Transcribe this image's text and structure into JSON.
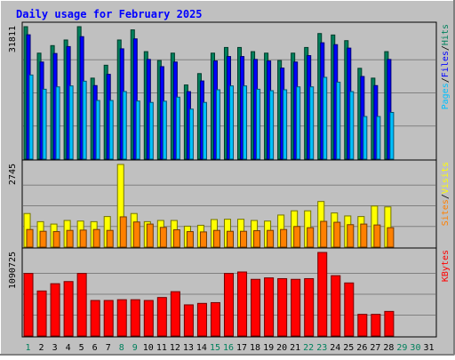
{
  "title": "Daily usage for February 2025",
  "colors": {
    "background": "#C0C0C0",
    "plot_background": "#C0C0C0",
    "title": "#0000FF",
    "hits": "#00805C",
    "files": "#0000FF",
    "pages": "#00C0FF",
    "visits": "#FFFF00",
    "sites": "#FF8000",
    "kbytes": "#FF0000",
    "weekday_label": "#000000",
    "weekend_label": "#00805C",
    "gridline": "#808080"
  },
  "chart_data": [
    {
      "type": "bar",
      "panel": "top",
      "max_label": "31811",
      "ylim": [
        0,
        31811
      ],
      "legend": [
        "Pages",
        "/",
        "Files",
        "/",
        "Hits"
      ],
      "legend_placement": "right",
      "categories": [
        "1",
        "2",
        "3",
        "4",
        "5",
        "6",
        "7",
        "8",
        "9",
        "10",
        "11",
        "12",
        "13",
        "14",
        "15",
        "16",
        "17",
        "18",
        "19",
        "20",
        "21",
        "22",
        "23",
        "24",
        "25",
        "26",
        "27",
        "28",
        "29",
        "30",
        "31"
      ],
      "weekend_days": [
        "1",
        "8",
        "9",
        "15",
        "16",
        "22",
        "23",
        "29",
        "30"
      ],
      "series": [
        {
          "name": "Hits",
          "values": [
            31811,
            25451,
            27261,
            28611,
            31811,
            19451,
            22551,
            28611,
            31041,
            25811,
            23681,
            25451,
            17811,
            20541,
            25451,
            26811,
            26811,
            25811,
            25451,
            23681,
            25451,
            26811,
            30161,
            29811,
            28451,
            21811,
            19451,
            25811,
            null,
            null,
            null
          ]
        },
        {
          "name": "Files",
          "values": [
            29861,
            23321,
            25371,
            27031,
            29411,
            17661,
            20361,
            26491,
            28881,
            23941,
            22211,
            23321,
            16211,
            18771,
            23581,
            24641,
            24641,
            23941,
            23581,
            21871,
            23321,
            24861,
            27941,
            27491,
            26661,
            19851,
            17661,
            23941,
            null,
            null,
            null
          ]
        },
        {
          "name": "Pages",
          "values": [
            20201,
            16781,
            17351,
            17581,
            18711,
            14081,
            14081,
            16231,
            13951,
            13611,
            13901,
            14881,
            12011,
            13611,
            16651,
            17581,
            17581,
            16781,
            16431,
            16651,
            17351,
            17351,
            19641,
            18481,
            16211,
            10231,
            10231,
            11211,
            null,
            null,
            null
          ]
        }
      ]
    },
    {
      "type": "bar",
      "panel": "middle",
      "max_label": "2745",
      "ylim": [
        0,
        2745
      ],
      "legend": [
        "Sites",
        "/",
        "Visits"
      ],
      "legend_placement": "right",
      "categories": [
        "1",
        "2",
        "3",
        "4",
        "5",
        "6",
        "7",
        "8",
        "9",
        "10",
        "11",
        "12",
        "13",
        "14",
        "15",
        "16",
        "17",
        "18",
        "19",
        "20",
        "21",
        "22",
        "23",
        "24",
        "25",
        "26",
        "27",
        "28",
        "29",
        "30",
        "31"
      ],
      "series": [
        {
          "name": "Visits",
          "values": [
            1115,
            845,
            765,
            885,
            865,
            845,
            1015,
            2745,
            1115,
            845,
            885,
            885,
            695,
            725,
            915,
            925,
            925,
            885,
            865,
            1065,
            1205,
            1205,
            1515,
            1135,
            1035,
            1015,
            1365,
            1335,
            null,
            null,
            null
          ]
        },
        {
          "name": "Sites",
          "values": [
            585,
            525,
            515,
            555,
            565,
            585,
            555,
            1005,
            835,
            765,
            655,
            575,
            515,
            505,
            555,
            525,
            525,
            545,
            555,
            585,
            685,
            645,
            855,
            825,
            745,
            765,
            735,
            645,
            null,
            null,
            null
          ]
        }
      ]
    },
    {
      "type": "bar",
      "panel": "bottom",
      "max_label": "1090725",
      "ylim": [
        0,
        1090725
      ],
      "legend": [
        "KBytes"
      ],
      "legend_placement": "right",
      "categories": [
        "1",
        "2",
        "3",
        "4",
        "5",
        "6",
        "7",
        "8",
        "9",
        "10",
        "11",
        "12",
        "13",
        "14",
        "15",
        "16",
        "17",
        "18",
        "19",
        "20",
        "21",
        "22",
        "23",
        "24",
        "25",
        "26",
        "27",
        "28",
        "29",
        "30",
        "31"
      ],
      "series": [
        {
          "name": "KBytes",
          "values": [
            816725,
            587725,
            682725,
            710725,
            816725,
            463725,
            463725,
            473725,
            473725,
            463725,
            502725,
            578725,
            406725,
            425725,
            435725,
            816725,
            835725,
            739725,
            758725,
            748725,
            739725,
            748725,
            1090725,
            787725,
            692725,
            282725,
            282725,
            320725,
            null,
            null,
            null
          ]
        }
      ]
    }
  ]
}
